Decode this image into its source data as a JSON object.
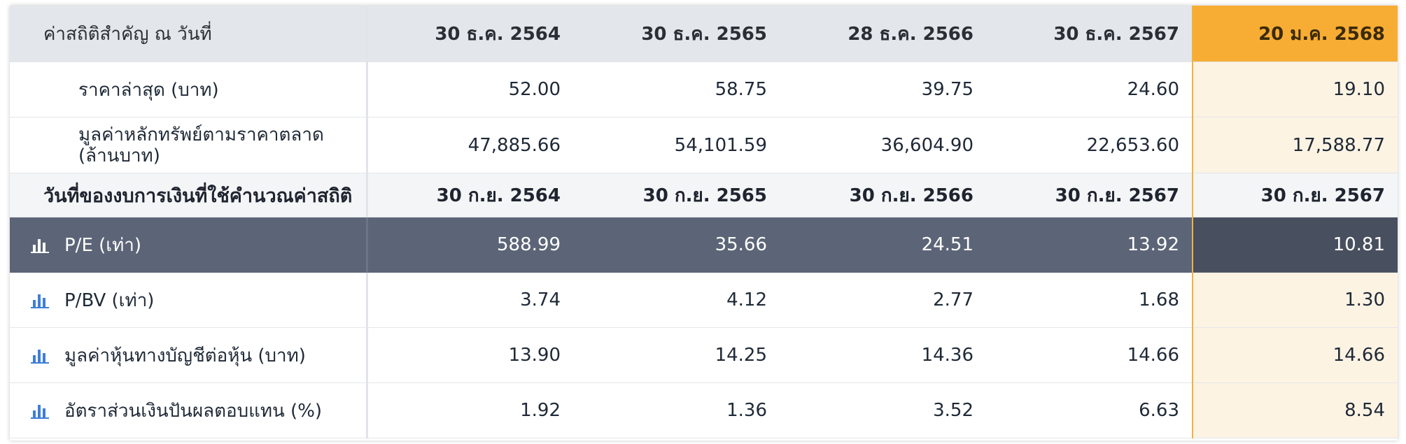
{
  "table": {
    "header": {
      "label": "ค่าสถิติสำคัญ ณ วันที่",
      "dates": [
        "30 ธ.ค. 2564",
        "30 ธ.ค. 2565",
        "28 ธ.ค. 2566",
        "30 ธ.ค. 2567",
        "20 ม.ค. 2568"
      ]
    },
    "price_rows": [
      {
        "label": "ราคาล่าสุด (บาท)",
        "values": [
          "52.00",
          "58.75",
          "39.75",
          "24.60",
          "19.10"
        ]
      },
      {
        "label": "มูลค่าหลักทรัพย์ตามราคาตลาด (ล้านบาท)",
        "values": [
          "47,885.66",
          "54,101.59",
          "36,604.90",
          "22,653.60",
          "17,588.77"
        ]
      }
    ],
    "statement_row": {
      "label": "วันที่ของงบการเงินที่ใช้คำนวณค่าสถิติ",
      "dates": [
        "30 ก.ย. 2564",
        "30 ก.ย. 2565",
        "30 ก.ย. 2566",
        "30 ก.ย. 2567",
        "30 ก.ย. 2567"
      ]
    },
    "ratio_rows": [
      {
        "label": "P/E (เท่า)",
        "icon": "bar-chart-icon",
        "selected": true,
        "values": [
          "588.99",
          "35.66",
          "24.51",
          "13.92",
          "10.81"
        ]
      },
      {
        "label": "P/BV (เท่า)",
        "icon": "bar-chart-icon",
        "values": [
          "3.74",
          "4.12",
          "2.77",
          "1.68",
          "1.30"
        ]
      },
      {
        "label": "มูลค่าหุ้นทางบัญชีต่อหุ้น (บาท)",
        "icon": "bar-chart-icon",
        "values": [
          "13.90",
          "14.25",
          "14.36",
          "14.66",
          "14.66"
        ]
      },
      {
        "label": "อัตราส่วนเงินปันผลตอบแทน (%)",
        "icon": "bar-chart-icon",
        "values": [
          "1.92",
          "1.36",
          "3.52",
          "6.63",
          "8.54"
        ]
      }
    ]
  },
  "colors": {
    "accent": "#f7ad33",
    "header_bg": "#e3e6ea",
    "selected_row": "#5c6577",
    "icon_blue": "#3f7fd6"
  }
}
